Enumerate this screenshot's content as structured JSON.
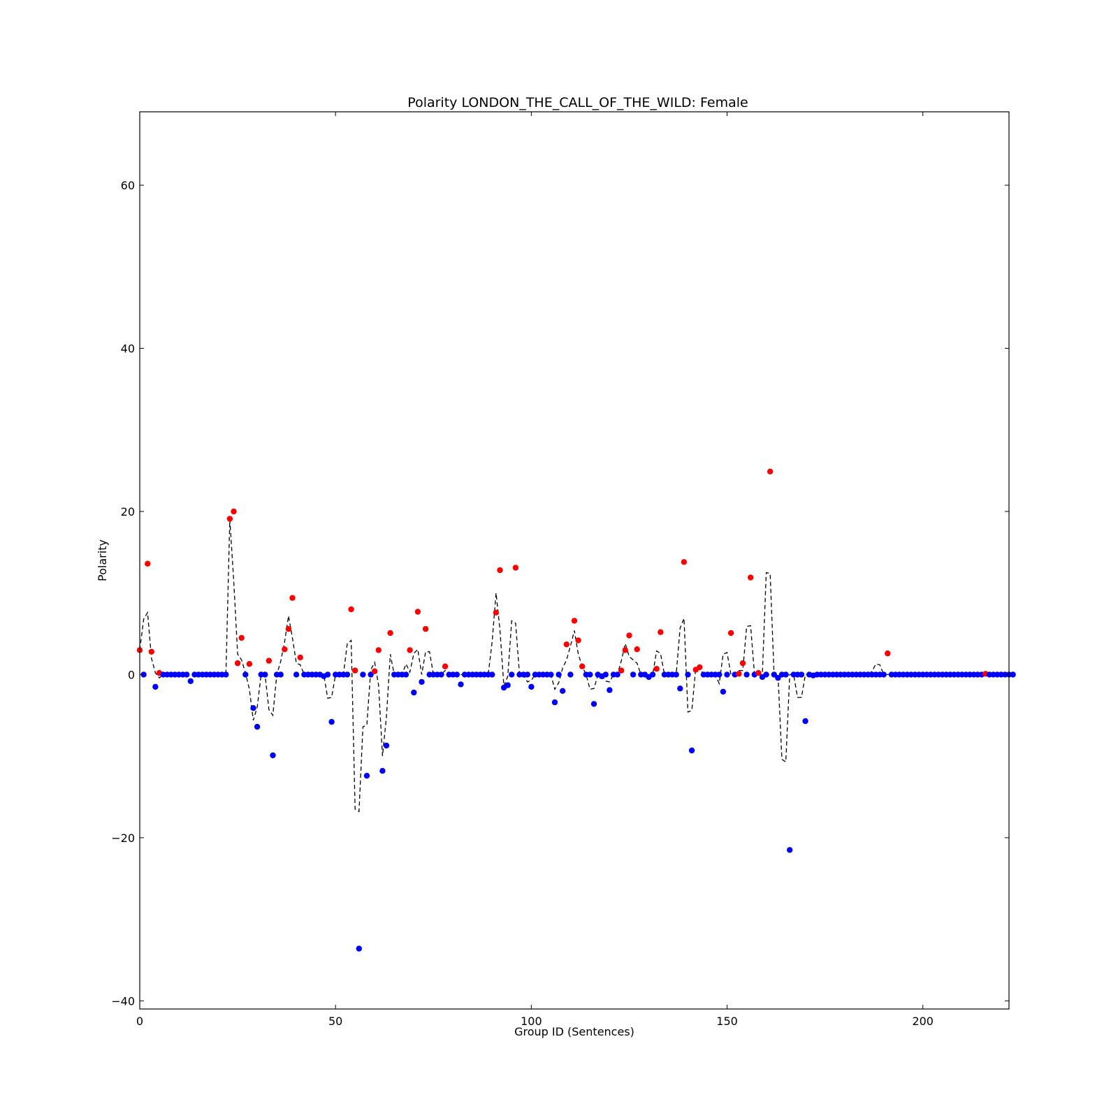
{
  "chart_data": {
    "type": "scatter",
    "title": "Polarity LONDON_THE_CALL_OF_THE_WILD: Female",
    "xlabel": "Group ID (Sentences)",
    "ylabel": "Polarity",
    "xlim": [
      0,
      222
    ],
    "ylim": [
      -41,
      69
    ],
    "xticks": [
      0,
      50,
      100,
      150,
      200
    ],
    "yticks": [
      -40,
      -20,
      0,
      20,
      40,
      60
    ],
    "xtick_labels": [
      "0",
      "50",
      "100",
      "150",
      "200"
    ],
    "ytick_labels": [
      "−40",
      "−20",
      "0",
      "20",
      "40",
      "60"
    ],
    "grid": false,
    "colors": {
      "positive": "#ff0000",
      "negative": "#0000ff",
      "smoothed": "#000000"
    },
    "series": [
      {
        "values": [
          3.0,
          0,
          13.6,
          2.8,
          -1.5,
          0.2,
          0,
          0,
          0,
          0,
          0,
          0,
          0,
          -0.8,
          0,
          0,
          0,
          0,
          0,
          0,
          0,
          0,
          0,
          19.1,
          20.0,
          1.4,
          4.5,
          0,
          1.3,
          -4.1,
          -6.4,
          0,
          0,
          1.7,
          -9.9,
          0,
          0,
          3.1,
          5.6,
          9.4,
          0,
          2.1,
          0,
          0,
          0,
          0,
          0,
          -0.2,
          0,
          -5.8,
          0,
          0,
          0,
          0,
          8.0,
          0.5,
          -33.6,
          0,
          -12.4,
          0,
          0.4,
          3.0,
          -11.8,
          -8.7,
          5.1,
          0,
          0,
          0,
          0,
          3.0,
          -2.2,
          7.7,
          -0.9,
          5.6,
          0,
          0,
          0,
          0,
          1.0,
          0,
          0,
          0,
          -1.2,
          0,
          0,
          0,
          0,
          0,
          0,
          0,
          0,
          7.6,
          12.8,
          -1.6,
          -1.3,
          0,
          13.1,
          0,
          0,
          0,
          -1.5,
          0,
          0,
          0,
          0,
          0,
          -3.4,
          0,
          -2.0,
          3.7,
          0,
          6.6,
          4.2,
          1.0,
          0,
          0,
          -3.6,
          0,
          -0.2,
          0,
          -1.9,
          0,
          0,
          0.5,
          3.0,
          4.8,
          0,
          3.1,
          0,
          0,
          -0.3,
          0,
          0.7,
          5.2,
          0,
          0,
          0,
          0,
          -1.7,
          13.8,
          0,
          -9.3,
          0.6,
          0.9,
          0,
          0,
          0,
          0,
          0,
          -2.1,
          0,
          5.1,
          0,
          0.1,
          1.4,
          0,
          11.9,
          0,
          0.2,
          -0.3,
          0,
          24.9,
          0,
          -0.4,
          0,
          0,
          -21.5,
          0,
          0,
          0,
          -5.7,
          0,
          -0.1,
          0,
          0,
          0,
          0,
          0,
          0,
          0,
          0,
          0,
          0,
          0,
          0,
          0,
          0,
          0,
          0,
          0,
          0,
          2.6,
          0,
          0,
          0,
          0,
          0,
          0,
          0,
          0,
          0,
          0,
          0,
          0,
          0,
          0,
          0,
          0,
          0,
          0,
          0,
          0,
          0,
          0,
          0,
          0,
          0.1,
          0,
          0,
          0,
          0,
          0,
          0,
          0
        ]
      },
      {
        "style": "dashed",
        "points": [
          [
            0,
            3.0
          ],
          [
            1,
            6.8
          ],
          [
            2,
            7.6
          ],
          [
            3,
            2.0
          ],
          [
            4,
            0.2
          ],
          [
            5,
            -0.4
          ],
          [
            6,
            0
          ],
          [
            22,
            0
          ],
          [
            23,
            19.0
          ],
          [
            24,
            11.5
          ],
          [
            25,
            2.5
          ],
          [
            26,
            1.8
          ],
          [
            27,
            0.2
          ],
          [
            28,
            -1.8
          ],
          [
            29,
            -5.6
          ],
          [
            30,
            -4.0
          ],
          [
            31,
            0
          ],
          [
            32,
            0
          ],
          [
            33,
            -4.3
          ],
          [
            34,
            -5.0
          ],
          [
            35,
            0
          ],
          [
            36,
            1.6
          ],
          [
            37,
            4.0
          ],
          [
            38,
            7.2
          ],
          [
            39,
            4.5
          ],
          [
            40,
            1.4
          ],
          [
            41,
            1.2
          ],
          [
            42,
            0
          ],
          [
            47,
            0
          ],
          [
            48,
            -2.9
          ],
          [
            49,
            -2.8
          ],
          [
            50,
            0
          ],
          [
            51,
            0
          ],
          [
            52,
            0
          ],
          [
            53,
            3.8
          ],
          [
            54,
            4.2
          ],
          [
            55,
            -16.5
          ],
          [
            56,
            -16.8
          ],
          [
            57,
            -6.4
          ],
          [
            58,
            -6.2
          ],
          [
            59,
            0.6
          ],
          [
            60,
            1.5
          ],
          [
            61,
            -1.3
          ],
          [
            62,
            -10.0
          ],
          [
            63,
            -5.2
          ],
          [
            64,
            2.5
          ],
          [
            65,
            0
          ],
          [
            67,
            0
          ],
          [
            68,
            1.3
          ],
          [
            69,
            0.3
          ],
          [
            70,
            2.6
          ],
          [
            71,
            3.1
          ],
          [
            72,
            0
          ],
          [
            73,
            2.8
          ],
          [
            74,
            2.8
          ],
          [
            75,
            0
          ],
          [
            77,
            0
          ],
          [
            78,
            0.5
          ],
          [
            79,
            0
          ],
          [
            82,
            0
          ],
          [
            89,
            0
          ],
          [
            90,
            4.0
          ],
          [
            91,
            10.0
          ],
          [
            92,
            5.5
          ],
          [
            93,
            -1.4
          ],
          [
            94,
            -0.2
          ],
          [
            95,
            6.6
          ],
          [
            96,
            6.3
          ],
          [
            97,
            0
          ],
          [
            98,
            0
          ],
          [
            99,
            -0.9
          ],
          [
            100,
            -0.7
          ],
          [
            101,
            0
          ],
          [
            105,
            0
          ],
          [
            106,
            -1.8
          ],
          [
            107,
            -1.0
          ],
          [
            108,
            0.8
          ],
          [
            109,
            1.8
          ],
          [
            110,
            3.5
          ],
          [
            111,
            5.4
          ],
          [
            112,
            2.5
          ],
          [
            113,
            1.0
          ],
          [
            114,
            0
          ],
          [
            115,
            -1.8
          ],
          [
            116,
            -1.7
          ],
          [
            117,
            -0.1
          ],
          [
            118,
            -0.1
          ],
          [
            119,
            -0.8
          ],
          [
            120,
            -0.9
          ],
          [
            121,
            0
          ],
          [
            122,
            0
          ],
          [
            123,
            1.7
          ],
          [
            124,
            3.8
          ],
          [
            125,
            2.2
          ],
          [
            126,
            1.8
          ],
          [
            127,
            1.4
          ],
          [
            128,
            0
          ],
          [
            131,
            0
          ],
          [
            132,
            2.9
          ],
          [
            133,
            2.6
          ],
          [
            134,
            0
          ],
          [
            137,
            0
          ],
          [
            138,
            5.7
          ],
          [
            139,
            6.9
          ],
          [
            140,
            -4.6
          ],
          [
            141,
            -4.4
          ],
          [
            142,
            0.8
          ],
          [
            143,
            0.8
          ],
          [
            144,
            0
          ],
          [
            147,
            0
          ],
          [
            148,
            -1.1
          ],
          [
            149,
            2.5
          ],
          [
            150,
            2.7
          ],
          [
            151,
            0
          ],
          [
            152,
            0
          ],
          [
            153,
            0.5
          ],
          [
            154,
            0.5
          ],
          [
            155,
            5.9
          ],
          [
            156,
            6.0
          ],
          [
            157,
            0
          ],
          [
            159,
            0
          ],
          [
            160,
            12.5
          ],
          [
            161,
            12.4
          ],
          [
            162,
            0
          ],
          [
            163,
            0
          ],
          [
            164,
            -10.4
          ],
          [
            165,
            -10.7
          ],
          [
            166,
            0
          ],
          [
            167,
            0
          ],
          [
            168,
            -2.8
          ],
          [
            169,
            -2.8
          ],
          [
            170,
            0
          ],
          [
            186,
            0
          ],
          [
            187,
            0.4
          ],
          [
            188,
            1.3
          ],
          [
            189,
            1.2
          ],
          [
            190,
            0
          ],
          [
            213,
            0
          ],
          [
            214,
            0.1
          ],
          [
            215,
            0
          ],
          [
            222,
            0
          ]
        ]
      }
    ]
  }
}
